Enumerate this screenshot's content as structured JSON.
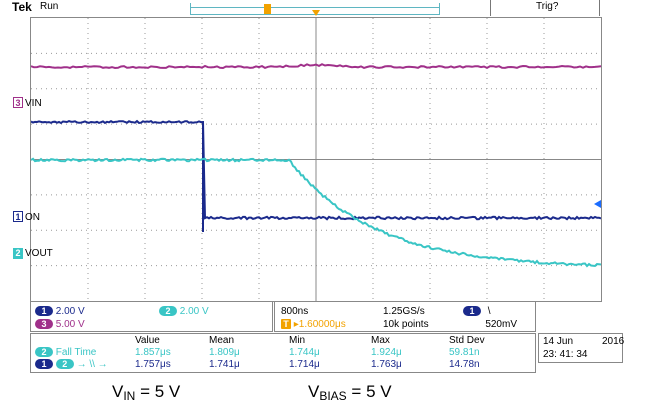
{
  "header": {
    "brand": "Tek",
    "run_state": "Run",
    "trigger_state": "Trig?"
  },
  "markers": {
    "trigger_marker": "T",
    "ch3_number": "3",
    "ch3_label": "VIN",
    "ch1_number": "1",
    "ch1_label": "ON",
    "ch2_number": "2",
    "ch2_label": "VOUT"
  },
  "channels": {
    "ch1": {
      "num": "1",
      "scale": "2.00 V",
      "color": "#1b2a8c"
    },
    "ch2": {
      "num": "2",
      "scale": "2.00 V",
      "color": "#39c5c5"
    },
    "ch3": {
      "num": "3",
      "scale": "5.00 V",
      "color": "#a0308a"
    }
  },
  "timebase": {
    "scale": "800ns",
    "sample_rate": "1.25GS/s",
    "position_symbol": "T",
    "position": "▸1.60000μs",
    "record_length": "10k points",
    "trigger_ch": "1",
    "trigger_slope": "\\",
    "trigger_level": "520mV"
  },
  "measurements": {
    "headers": [
      "Value",
      "Mean",
      "Min",
      "Max",
      "Std Dev"
    ],
    "rows": [
      {
        "source": "2",
        "label": "Fall Time",
        "values": [
          "1.857μs",
          "1.809μ",
          "1.744μ",
          "1.924μ",
          "59.81n"
        ]
      },
      {
        "source": "1",
        "target": "2",
        "label": "→ \\\\ →",
        "values": [
          "1.757μs",
          "1.741μ",
          "1.714μ",
          "1.763μ",
          "14.78n"
        ]
      }
    ]
  },
  "datetime": {
    "date": "14 Jun",
    "year": "2016",
    "time": "23: 41: 34"
  },
  "caption": {
    "vin_main": "V",
    "vin_sub": "IN",
    "vin_value": " = 5 V",
    "vbias_main": "V",
    "vbias_sub": "BIAS",
    "vbias_value": " = 5 V"
  },
  "colors": {
    "ch1": "#1b2a8c",
    "ch2": "#39c5c5",
    "ch3": "#a0308a",
    "trigger": "#f2a200",
    "grid": "#999999"
  }
}
